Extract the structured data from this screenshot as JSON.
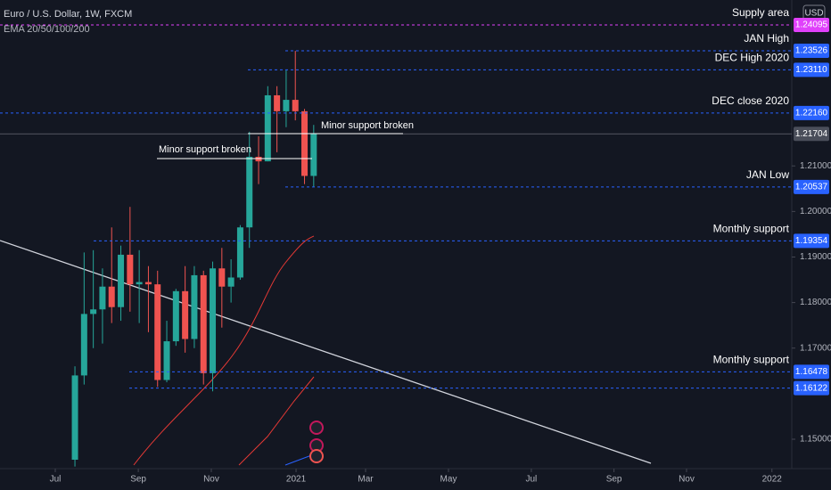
{
  "chart_data": {
    "type": "candlestick",
    "title": "Euro / U.S. Dollar, 1W, FXCM",
    "subtitle": "EMA 20/50/100/200",
    "currency": "USD",
    "up_color": "#26a69a",
    "down_color": "#ef5350",
    "open": [
      1.1455,
      1.164,
      1.1775,
      1.1785,
      1.1835,
      1.179,
      1.1905,
      1.184,
      1.1845,
      1.184,
      1.163,
      1.1715,
      1.1825,
      1.172,
      1.186,
      1.1645,
      1.1875,
      1.1835,
      1.1855,
      1.1965,
      1.212,
      1.211,
      1.2255,
      1.222,
      1.2245,
      1.222,
      1.2078
    ],
    "high": [
      1.166,
      1.191,
      1.1915,
      1.1875,
      1.1965,
      1.1925,
      1.201,
      1.1915,
      1.188,
      1.187,
      1.176,
      1.183,
      1.188,
      1.188,
      1.187,
      1.189,
      1.192,
      1.1895,
      1.197,
      1.2175,
      1.2165,
      1.2275,
      1.2275,
      1.231,
      1.23526,
      1.2225,
      1.219
    ],
    "low": [
      1.144,
      1.162,
      1.17,
      1.171,
      1.1755,
      1.176,
      1.178,
      1.1755,
      1.1735,
      1.1615,
      1.1625,
      1.1705,
      1.169,
      1.17,
      1.162,
      1.1605,
      1.1745,
      1.18,
      1.185,
      1.192,
      1.206,
      1.211,
      1.213,
      1.2185,
      1.22,
      1.206,
      1.20537
    ],
    "close": [
      1.164,
      1.1775,
      1.1785,
      1.1835,
      1.179,
      1.1905,
      1.184,
      1.1845,
      1.184,
      1.163,
      1.1715,
      1.1825,
      1.172,
      1.186,
      1.1645,
      1.1875,
      1.1835,
      1.1855,
      1.1965,
      1.212,
      1.211,
      1.2255,
      1.222,
      1.2245,
      1.222,
      1.2078,
      1.217
    ],
    "xlim": [
      -8.16,
      78.06
    ],
    "xticks": [
      {
        "value": -2.14,
        "label": "Jul"
      },
      {
        "value": 6.9,
        "label": "Sep"
      },
      {
        "value": 14.85,
        "label": "Nov"
      },
      {
        "value": 24.08,
        "label": "2021"
      },
      {
        "value": 31.65,
        "label": "Mar"
      },
      {
        "value": 40.68,
        "label": "May"
      },
      {
        "value": 49.7,
        "label": "Jul"
      },
      {
        "value": 58.7,
        "label": "Sep"
      },
      {
        "value": 66.6,
        "label": "Nov"
      },
      {
        "value": 75.9,
        "label": "2022"
      }
    ],
    "ylim": [
      1.14374,
      1.24642
    ],
    "yticks": [
      {
        "value": 1.15,
        "label": "1.15000"
      },
      {
        "value": 1.17,
        "label": "1.17000"
      },
      {
        "value": 1.18,
        "label": "1.18000"
      },
      {
        "value": 1.19,
        "label": "1.19000"
      },
      {
        "value": 1.2,
        "label": "1.20000"
      },
      {
        "value": 1.21,
        "label": "1.21000"
      }
    ],
    "levels": [
      {
        "label": "Supply area",
        "value": 1.24095,
        "price_label": "1.24095",
        "color": "#e040fb"
      },
      {
        "label": "JAN High",
        "value": 1.23526,
        "price_label": "1.23526",
        "color": "#2962ff"
      },
      {
        "label": "DEC High 2020",
        "value": 1.2311,
        "price_label": "1.23110",
        "color": "#2962ff"
      },
      {
        "label": "DEC close 2020",
        "value": 1.2216,
        "price_label": "1.22160",
        "color": "#2962ff"
      },
      {
        "label": "JAN Low",
        "value": 1.20537,
        "price_label": "1.20537",
        "color": "#2962ff"
      },
      {
        "label": "Monthly support",
        "value": 1.19354,
        "price_label": "1.19354",
        "color": "#2962ff"
      },
      {
        "label": "Monthly support",
        "value": 1.16478,
        "price_label": "1.16478",
        "color": "#2962ff"
      },
      {
        "value": 1.16122,
        "price_label": "1.16122",
        "color": "#2962ff"
      }
    ],
    "last_price": {
      "value": 1.21704,
      "label": "1.21704"
    },
    "annotations": [
      "Minor support broken",
      "Minor support broken"
    ]
  }
}
